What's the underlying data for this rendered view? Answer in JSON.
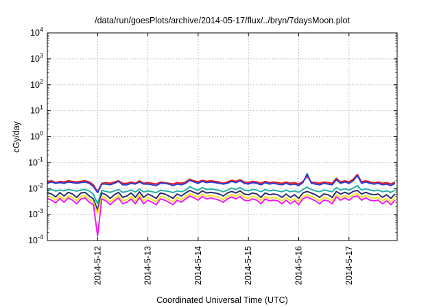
{
  "chart_data": {
    "type": "line",
    "title": "/data/run/goesPlots/archive/2014-05-17/flux/../bryn/7daysMoon.plot",
    "xlabel": "Coordinated Universal Time (UTC)",
    "ylabel": "cGy/day",
    "y_scale": "log",
    "ylim": [
      0.0001,
      10000
    ],
    "y_tick_labels": [
      {
        "base": "10",
        "exp": "4"
      },
      {
        "base": "10",
        "exp": "3"
      },
      {
        "base": "10",
        "exp": "2"
      },
      {
        "base": "10",
        "exp": "1"
      },
      {
        "base": "10",
        "exp": "0"
      },
      {
        "base": "10",
        "exp": "-1"
      },
      {
        "base": "10",
        "exp": "-2"
      },
      {
        "base": "10",
        "exp": "-3"
      },
      {
        "base": "10",
        "exp": "-4"
      }
    ],
    "xlim": [
      "2014-05-11 00:00",
      "2014-05-17 23:00"
    ],
    "x_ticks": [
      "2014-5-12",
      "2014-5-13",
      "2014-5-14",
      "2014-5-15",
      "2014-5-16",
      "2014-5-17"
    ],
    "x": [
      "2014-05-11 00:00",
      "2014-05-11 02:00",
      "2014-05-11 04:00",
      "2014-05-11 06:00",
      "2014-05-11 08:00",
      "2014-05-11 10:00",
      "2014-05-11 12:00",
      "2014-05-11 14:00",
      "2014-05-11 16:00",
      "2014-05-11 18:00",
      "2014-05-11 20:00",
      "2014-05-11 22:00",
      "2014-05-12 00:00",
      "2014-05-12 02:00",
      "2014-05-12 04:00",
      "2014-05-12 06:00",
      "2014-05-12 08:00",
      "2014-05-12 10:00",
      "2014-05-12 12:00",
      "2014-05-12 14:00",
      "2014-05-12 16:00",
      "2014-05-12 18:00",
      "2014-05-12 20:00",
      "2014-05-12 22:00",
      "2014-05-13 00:00",
      "2014-05-13 02:00",
      "2014-05-13 04:00",
      "2014-05-13 06:00",
      "2014-05-13 08:00",
      "2014-05-13 10:00",
      "2014-05-13 12:00",
      "2014-05-13 14:00",
      "2014-05-13 16:00",
      "2014-05-13 18:00",
      "2014-05-13 20:00",
      "2014-05-13 22:00",
      "2014-05-14 00:00",
      "2014-05-14 02:00",
      "2014-05-14 04:00",
      "2014-05-14 06:00",
      "2014-05-14 08:00",
      "2014-05-14 10:00",
      "2014-05-14 12:00",
      "2014-05-14 14:00",
      "2014-05-14 16:00",
      "2014-05-14 18:00",
      "2014-05-14 20:00",
      "2014-05-14 22:00",
      "2014-05-15 00:00",
      "2014-05-15 02:00",
      "2014-05-15 04:00",
      "2014-05-15 06:00",
      "2014-05-15 08:00",
      "2014-05-15 10:00",
      "2014-05-15 12:00",
      "2014-05-15 14:00",
      "2014-05-15 16:00",
      "2014-05-15 18:00",
      "2014-05-15 20:00",
      "2014-05-15 22:00",
      "2014-05-16 00:00",
      "2014-05-16 02:00",
      "2014-05-16 04:00",
      "2014-05-16 06:00",
      "2014-05-16 08:00",
      "2014-05-16 10:00",
      "2014-05-16 12:00",
      "2014-05-16 14:00",
      "2014-05-16 16:00",
      "2014-05-16 18:00",
      "2014-05-16 20:00",
      "2014-05-16 22:00",
      "2014-05-17 00:00",
      "2014-05-17 02:00",
      "2014-05-17 04:00",
      "2014-05-17 06:00",
      "2014-05-17 08:00",
      "2014-05-17 10:00",
      "2014-05-17 12:00",
      "2014-05-17 14:00",
      "2014-05-17 16:00",
      "2014-05-17 18:00",
      "2014-05-17 20:00",
      "2014-05-17 22:00"
    ],
    "grid": true,
    "legend": "none",
    "series": [
      {
        "color": "#e8141c",
        "values": [
          0.018,
          0.02,
          0.017,
          0.019,
          0.018,
          0.02,
          0.019,
          0.018,
          0.019,
          0.02,
          0.018,
          0.014,
          0.0075,
          0.016,
          0.017,
          0.016,
          0.018,
          0.02,
          0.016,
          0.016,
          0.018,
          0.016,
          0.02,
          0.016,
          0.017,
          0.016,
          0.015,
          0.018,
          0.017,
          0.016,
          0.015,
          0.017,
          0.016,
          0.018,
          0.023,
          0.02,
          0.018,
          0.021,
          0.019,
          0.02,
          0.019,
          0.018,
          0.016,
          0.018,
          0.021,
          0.019,
          0.022,
          0.018,
          0.017,
          0.019,
          0.018,
          0.016,
          0.019,
          0.017,
          0.018,
          0.017,
          0.016,
          0.018,
          0.016,
          0.017,
          0.015,
          0.019,
          0.03,
          0.018,
          0.017,
          0.016,
          0.018,
          0.017,
          0.016,
          0.025,
          0.018,
          0.02,
          0.018,
          0.023,
          0.035,
          0.018,
          0.02,
          0.018,
          0.017,
          0.018,
          0.016,
          0.017,
          0.015,
          0.018
        ]
      },
      {
        "color": "#2a3ddc",
        "values": [
          0.016,
          0.018,
          0.016,
          0.017,
          0.016,
          0.018,
          0.017,
          0.016,
          0.017,
          0.018,
          0.016,
          0.012,
          0.007,
          0.015,
          0.015,
          0.014,
          0.016,
          0.019,
          0.014,
          0.014,
          0.016,
          0.015,
          0.018,
          0.015,
          0.015,
          0.014,
          0.013,
          0.016,
          0.016,
          0.015,
          0.013,
          0.015,
          0.014,
          0.016,
          0.021,
          0.018,
          0.016,
          0.019,
          0.017,
          0.018,
          0.017,
          0.016,
          0.015,
          0.016,
          0.019,
          0.017,
          0.02,
          0.016,
          0.015,
          0.017,
          0.016,
          0.014,
          0.017,
          0.015,
          0.016,
          0.015,
          0.014,
          0.016,
          0.014,
          0.015,
          0.013,
          0.017,
          0.037,
          0.016,
          0.015,
          0.014,
          0.016,
          0.015,
          0.014,
          0.022,
          0.016,
          0.018,
          0.016,
          0.02,
          0.032,
          0.016,
          0.018,
          0.016,
          0.015,
          0.016,
          0.014,
          0.015,
          0.013,
          0.016
        ]
      },
      {
        "color": "#20b0a8",
        "values": [
          0.0085,
          0.0092,
          0.008,
          0.0088,
          0.0082,
          0.0092,
          0.0086,
          0.008,
          0.0088,
          0.0092,
          0.0082,
          0.006,
          0.0026,
          0.0085,
          0.0078,
          0.0072,
          0.0082,
          0.0092,
          0.0072,
          0.0078,
          0.0088,
          0.0074,
          0.0095,
          0.0074,
          0.0082,
          0.0076,
          0.007,
          0.0086,
          0.0082,
          0.0078,
          0.007,
          0.0082,
          0.0076,
          0.0088,
          0.012,
          0.0098,
          0.0086,
          0.011,
          0.0092,
          0.0098,
          0.0092,
          0.0086,
          0.0076,
          0.0088,
          0.0105,
          0.0092,
          0.011,
          0.0088,
          0.0082,
          0.0092,
          0.0088,
          0.0076,
          0.0092,
          0.0082,
          0.0088,
          0.0082,
          0.0076,
          0.0088,
          0.0076,
          0.0082,
          0.0072,
          0.0092,
          0.0115,
          0.0092,
          0.0082,
          0.0076,
          0.0088,
          0.0082,
          0.0076,
          0.011,
          0.0088,
          0.0098,
          0.0088,
          0.0105,
          0.013,
          0.0088,
          0.0098,
          0.0088,
          0.0082,
          0.0088,
          0.0076,
          0.0082,
          0.0072,
          0.0088
        ]
      },
      {
        "color": "#2c2c6e",
        "values": [
          0.007,
          0.0062,
          0.0048,
          0.007,
          0.0052,
          0.0072,
          0.0062,
          0.0046,
          0.0068,
          0.0072,
          0.0052,
          0.004,
          0.0015,
          0.0068,
          0.0058,
          0.0042,
          0.0058,
          0.0072,
          0.0046,
          0.0052,
          0.0068,
          0.0046,
          0.0075,
          0.0046,
          0.0062,
          0.0052,
          0.0042,
          0.0068,
          0.0062,
          0.0052,
          0.0042,
          0.0062,
          0.0052,
          0.0068,
          0.0085,
          0.0072,
          0.0062,
          0.0082,
          0.0068,
          0.0072,
          0.0068,
          0.0062,
          0.0052,
          0.0068,
          0.0078,
          0.0068,
          0.0082,
          0.0062,
          0.0058,
          0.0068,
          0.0062,
          0.0046,
          0.0068,
          0.0058,
          0.0062,
          0.0058,
          0.0046,
          0.0062,
          0.0046,
          0.0058,
          0.0042,
          0.0068,
          0.0078,
          0.0068,
          0.0058,
          0.0046,
          0.0062,
          0.0058,
          0.0046,
          0.0078,
          0.0062,
          0.0072,
          0.0062,
          0.0078,
          0.0085,
          0.0062,
          0.0072,
          0.0062,
          0.0058,
          0.0062,
          0.0046,
          0.0058,
          0.0042,
          0.0062
        ]
      },
      {
        "color": "#f0e020",
        "values": [
          0.0052,
          0.0046,
          0.0036,
          0.0052,
          0.0038,
          0.0054,
          0.0046,
          0.0034,
          0.005,
          0.0054,
          0.0038,
          0.003,
          0.0011,
          0.005,
          0.0042,
          0.0031,
          0.0042,
          0.0054,
          0.0034,
          0.0038,
          0.005,
          0.0034,
          0.0056,
          0.0034,
          0.0046,
          0.0038,
          0.0031,
          0.005,
          0.0046,
          0.0038,
          0.0031,
          0.0046,
          0.0038,
          0.005,
          0.0064,
          0.0054,
          0.0046,
          0.0062,
          0.005,
          0.0054,
          0.005,
          0.0046,
          0.0038,
          0.005,
          0.0058,
          0.005,
          0.0062,
          0.0046,
          0.0042,
          0.005,
          0.0046,
          0.0034,
          0.005,
          0.0042,
          0.0046,
          0.0042,
          0.0034,
          0.0046,
          0.0034,
          0.0042,
          0.0031,
          0.005,
          0.0058,
          0.005,
          0.0042,
          0.0034,
          0.0046,
          0.0042,
          0.0034,
          0.0058,
          0.0046,
          0.0054,
          0.0046,
          0.0058,
          0.0064,
          0.0046,
          0.0054,
          0.0046,
          0.0042,
          0.0046,
          0.0034,
          0.0042,
          0.0031,
          0.0046
        ]
      },
      {
        "color": "#f018f0",
        "values": [
          0.0042,
          0.0036,
          0.0028,
          0.0042,
          0.003,
          0.0044,
          0.0036,
          0.0026,
          0.004,
          0.0044,
          0.003,
          0.0024,
          0.00015,
          0.004,
          0.0034,
          0.0024,
          0.0034,
          0.0044,
          0.0026,
          0.003,
          0.004,
          0.0026,
          0.0046,
          0.0026,
          0.0036,
          0.003,
          0.0024,
          0.004,
          0.0036,
          0.003,
          0.0024,
          0.0036,
          0.003,
          0.004,
          0.0052,
          0.0044,
          0.0036,
          0.005,
          0.004,
          0.0044,
          0.004,
          0.0036,
          0.003,
          0.004,
          0.0048,
          0.004,
          0.005,
          0.0036,
          0.0034,
          0.004,
          0.0036,
          0.0026,
          0.004,
          0.0034,
          0.0036,
          0.0034,
          0.0026,
          0.0036,
          0.0026,
          0.0034,
          0.0024,
          0.004,
          0.0048,
          0.004,
          0.0034,
          0.0026,
          0.0036,
          0.0034,
          0.0026,
          0.0048,
          0.0036,
          0.0044,
          0.0036,
          0.0048,
          0.0052,
          0.0036,
          0.0044,
          0.0036,
          0.0034,
          0.0036,
          0.0026,
          0.0034,
          0.0024,
          0.0036
        ]
      }
    ]
  }
}
